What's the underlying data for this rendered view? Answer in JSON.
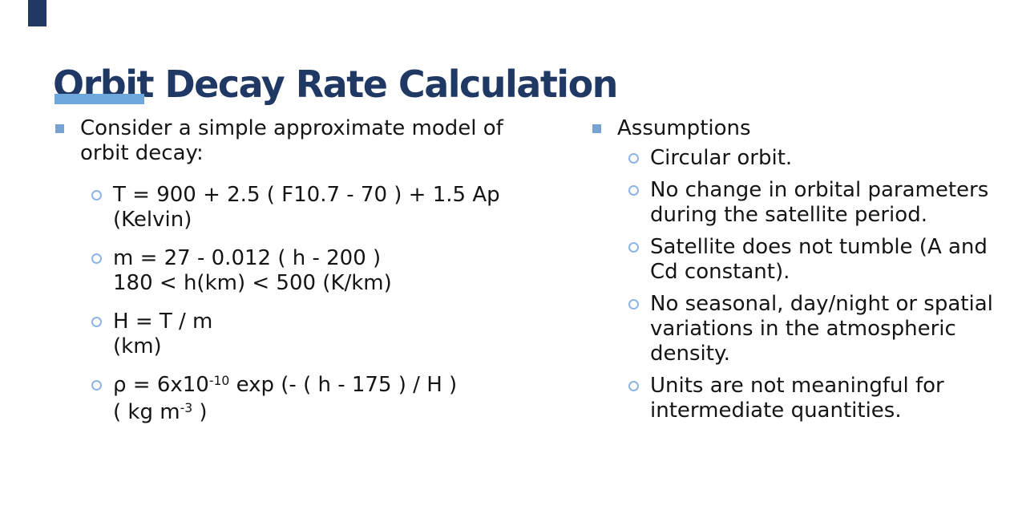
{
  "slide": {
    "title": "Orbit Decay Rate Calculation",
    "background": "#FFFFFF"
  },
  "colors": {
    "title_navy": "#1F3864",
    "accent_underline_blue": "#6FA8DC",
    "square_bullet_blue": "#76A3D4",
    "circle_bullet_blue": "#8EB4E6",
    "body_text": "#151515"
  },
  "columns": [
    {
      "heading": {
        "lines": [
          "Consider a simple approximate model of",
          "orbit decay:"
        ]
      },
      "items": [
        {
          "lines": [
            [
              {
                "t": "T = 900 + 2.5 ( F10.7 - 70 ) + 1.5 Ap"
              }
            ],
            [
              {
                "t": "(Kelvin)"
              }
            ]
          ]
        },
        {
          "lines": [
            [
              {
                "t": "m = 27 - 0.012 ( h - 200 )"
              }
            ],
            [
              {
                "t": "180 < h(km) < 500 (K/km)"
              }
            ]
          ]
        },
        {
          "lines": [
            [
              {
                "t": "H = T / m"
              }
            ],
            [
              {
                "t": "(km)"
              }
            ]
          ]
        },
        {
          "lines": [
            [
              {
                "t": "ρ = 6x10"
              },
              {
                "t": "-10",
                "sup": true
              },
              {
                "t": " exp (- ( h - 175 ) / H )"
              }
            ],
            [
              {
                "t": "( kg m"
              },
              {
                "t": "-3",
                "sup": true
              },
              {
                "t": " )"
              }
            ]
          ]
        }
      ]
    },
    {
      "heading": {
        "lines": [
          "Assumptions"
        ]
      },
      "items": [
        {
          "lines": [
            [
              {
                "t": "Circular orbit."
              }
            ]
          ]
        },
        {
          "lines": [
            [
              {
                "t": "No change in orbital parameters"
              }
            ],
            [
              {
                "t": "during the satellite period."
              }
            ]
          ]
        },
        {
          "lines": [
            [
              {
                "t": "Satellite does not tumble (A and"
              }
            ],
            [
              {
                "t": "Cd constant)."
              }
            ]
          ]
        },
        {
          "lines": [
            [
              {
                "t": "No seasonal, day/night or spatial"
              }
            ],
            [
              {
                "t": "variations in the atmospheric"
              }
            ],
            [
              {
                "t": "density."
              }
            ]
          ]
        },
        {
          "lines": [
            [
              {
                "t": "Units are not meaningful for"
              }
            ],
            [
              {
                "t": "intermediate quantities."
              }
            ]
          ]
        }
      ]
    }
  ]
}
